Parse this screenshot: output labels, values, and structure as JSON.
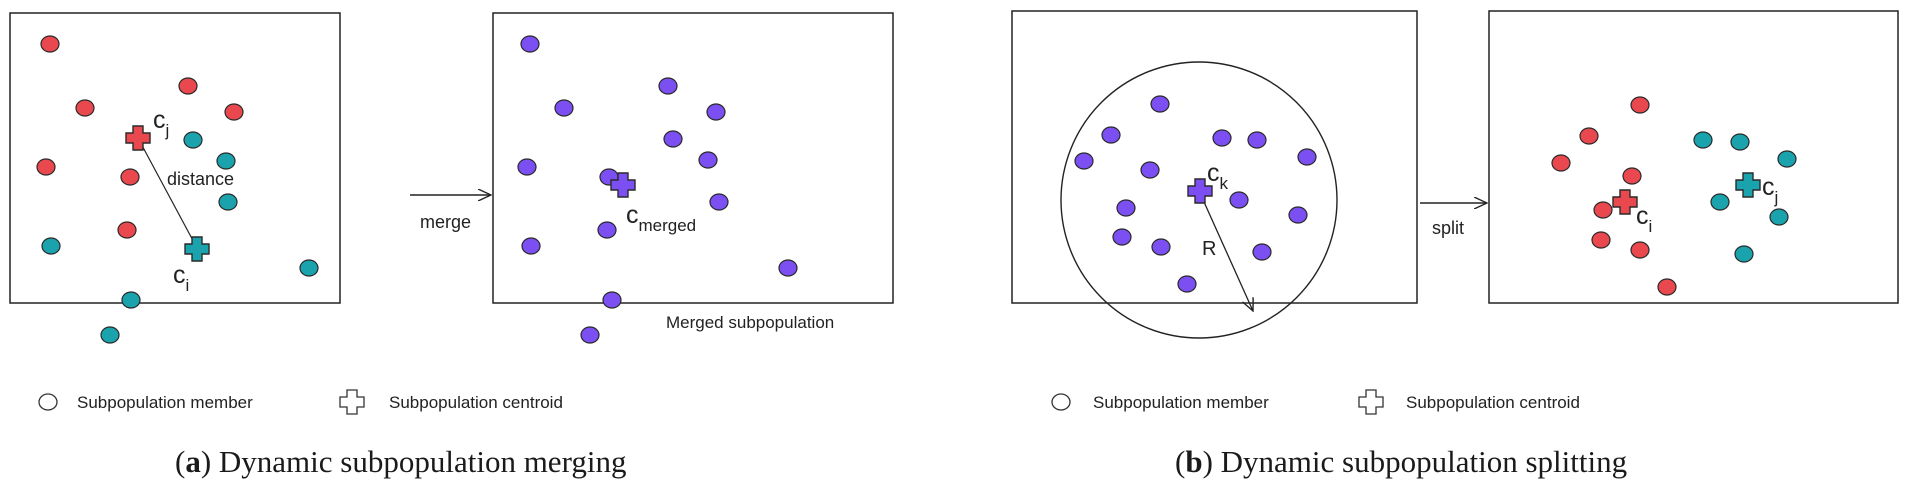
{
  "colors": {
    "red": "#e8484e",
    "teal": "#1aa3ad",
    "purple": "#7b4ff2",
    "stroke": "#2a2a2a"
  },
  "panel_a": {
    "c_j": "c",
    "c_j_sub": "j",
    "c_i": "c",
    "c_i_sub": "i",
    "distance": "distance",
    "merge": "merge",
    "c_merged": "c",
    "c_merged_sub": "merged",
    "merged_label": "Merged subpopulation",
    "legend_member": "Subpopulation member",
    "legend_centroid": "Subpopulation centroid",
    "caption_letter": "a",
    "caption_text": " Dynamic subpopulation merging"
  },
  "panel_b": {
    "c_k": "c",
    "c_k_sub": "k",
    "radius": "R",
    "split": "split",
    "c_i": "c",
    "c_i_sub": "i",
    "c_j": "c",
    "c_j_sub": "j",
    "legend_member": "Subpopulation member",
    "legend_centroid": "Subpopulation centroid",
    "caption_letter": "b",
    "caption_text": " Dynamic subpopulation splitting"
  }
}
